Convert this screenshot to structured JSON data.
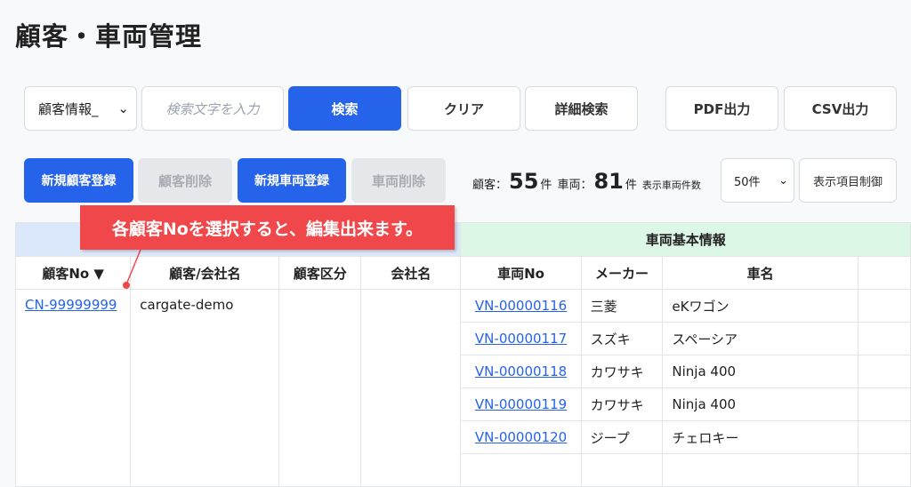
{
  "title": "顧客・車両管理",
  "search": {
    "select_value": "顧客情報_",
    "placeholder": "検索文字を入力",
    "search": "検索",
    "clear": "クリア",
    "advanced": "詳細検索",
    "pdf": "PDF出力",
    "csv": "CSV出力"
  },
  "actions": {
    "new_customer": "新規顧客登録",
    "delete_customer": "顧客削除",
    "new_vehicle": "新規車両登録",
    "delete_vehicle": "車両削除"
  },
  "counts": {
    "customer_label": "顧客：",
    "customer_count": "55",
    "unit": "件",
    "vehicle_label": "車両：",
    "vehicle_count": "81",
    "per_page_label": "表示車両件数",
    "per_page_value": "50件",
    "column_control": "表示項目制御"
  },
  "table": {
    "group_vehicle": "車両基本情報",
    "headers": [
      "顧客No ▼",
      "顧客/会社名",
      "顧客区分",
      "会社名",
      "車両No",
      "メーカー",
      "車名"
    ],
    "customer": {
      "no": "CN-99999999",
      "name": "cargate-demo"
    },
    "vehicles": [
      {
        "no": "VN-00000116",
        "maker": "三菱",
        "name": "eKワゴン"
      },
      {
        "no": "VN-00000117",
        "maker": "スズキ",
        "name": "スペーシア"
      },
      {
        "no": "VN-00000118",
        "maker": "カワサキ",
        "name": "Ninja 400"
      },
      {
        "no": "VN-00000119",
        "maker": "カワサキ",
        "name": "Ninja 400"
      },
      {
        "no": "VN-00000120",
        "maker": "ジープ",
        "name": "チェロキー"
      }
    ]
  },
  "callout": "各顧客Noを選択すると、編集出来ます。",
  "colors": {
    "primary": "#2563eb",
    "callout": "#f0474b"
  }
}
